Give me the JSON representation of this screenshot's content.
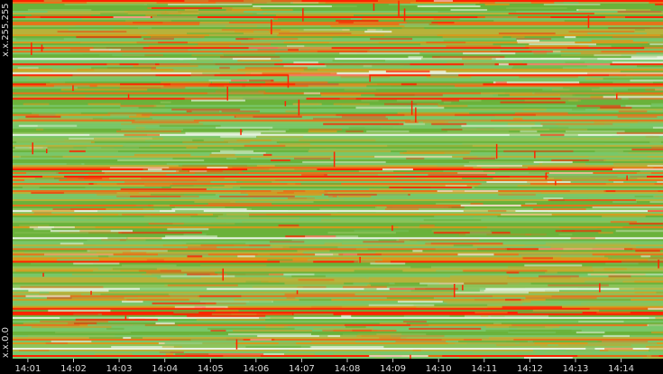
{
  "chart_data": {
    "type": "heatmap",
    "title": "",
    "xlabel": "",
    "ylabel": "",
    "y_tick_labels": [
      "x.x.255.255",
      "x.x.0.0"
    ],
    "x_tick_labels": [
      "14:01",
      "14:02",
      "14:03",
      "14:04",
      "14:05",
      "14:06",
      "14:07",
      "14:08",
      "14:09",
      "14:10",
      "14:11",
      "14:12",
      "14:13",
      "14:14"
    ],
    "x_start_time": "14:00:40",
    "x_end_time": "14:14:55",
    "rows": 198,
    "colors": {
      "background": "#000000",
      "low": "#79c76a",
      "mid": "#6ab23a",
      "high": "#d99a1c",
      "peak": "#ff2200",
      "sparse": "#e9f4e4",
      "label": "#dddddd",
      "tick": "#cccccc"
    },
    "grid": false,
    "legend": "none"
  }
}
